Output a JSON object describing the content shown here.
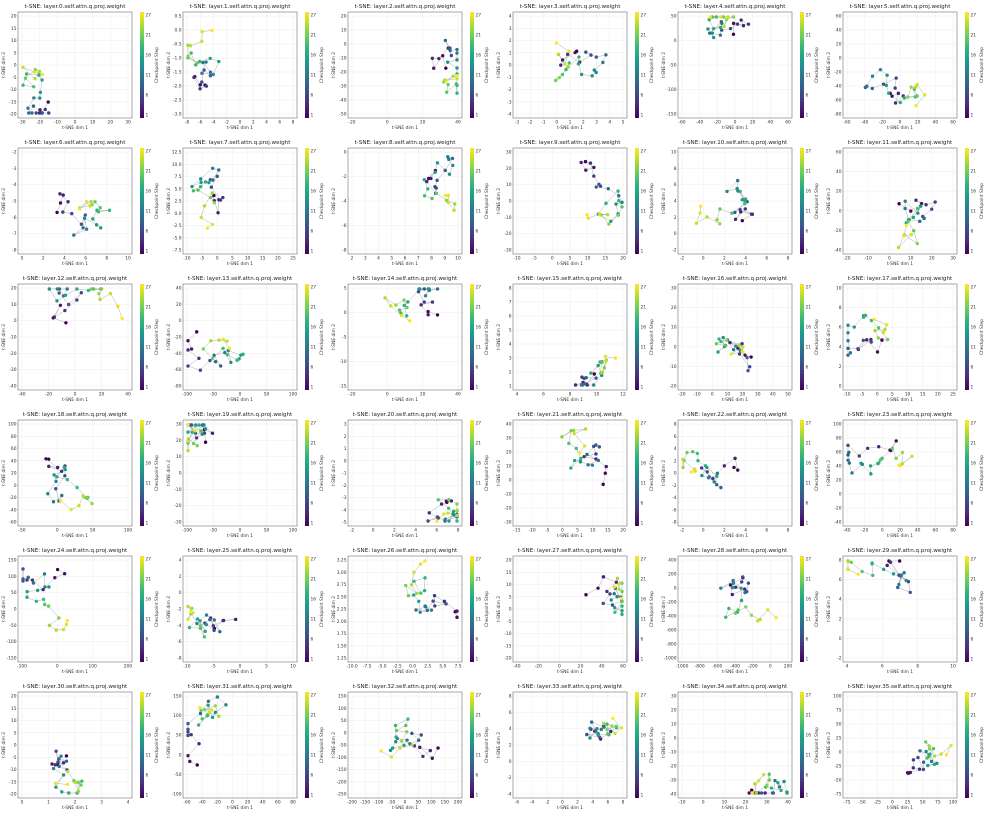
{
  "figure": {
    "xlabel": "t-SNE dim 1",
    "ylabel": "t-SNE dim 2",
    "colorbar_label": "Checkpoint Step",
    "colorbar_ticks": [
      "27",
      "21",
      "16",
      "11",
      "6",
      "1"
    ]
  },
  "chart_data": [
    {
      "title": "t-SNE: layer.0.self.attn.q.proj.weight",
      "type": "scatter",
      "xticks": [
        "-30",
        "-20",
        "-10",
        "0",
        "10",
        "20",
        "30"
      ],
      "yticks": [
        "20",
        "15",
        "10",
        "5",
        "0",
        "-5",
        "-10",
        "-15",
        "-20"
      ]
    },
    {
      "title": "t-SNE: layer.1.self.attn.q.proj.weight",
      "type": "scatter",
      "xticks": [
        "-8",
        "-6",
        "-4",
        "-2",
        "0",
        "2",
        "4",
        "6",
        "8"
      ],
      "yticks": [
        "0.5",
        "0.0",
        "-0.5",
        "-1.0",
        "-1.5",
        "-2.0",
        "-2.5",
        "-3.0"
      ]
    },
    {
      "title": "t-SNE: layer.2.self.attn.q.proj.weight",
      "type": "scatter",
      "xticks": [
        "-20",
        "0",
        "20",
        "40"
      ],
      "yticks": [
        "20",
        "10",
        "0",
        "-10",
        "-20",
        "-30",
        "-40",
        "-50"
      ]
    },
    {
      "title": "t-SNE: layer.3.self.attn.q.proj.weight",
      "type": "scatter",
      "xticks": [
        "-3",
        "-2",
        "-1",
        "0",
        "1",
        "2",
        "3",
        "4",
        "5"
      ],
      "yticks": [
        "4",
        "3",
        "2",
        "1",
        "0",
        "-1",
        "-2",
        "-3",
        "-4"
      ]
    },
    {
      "title": "t-SNE: layer.4.self.attn.q.proj.weight",
      "type": "scatter",
      "xticks": [
        "-60",
        "-40",
        "-20",
        "0",
        "20",
        "40",
        "60"
      ],
      "yticks": [
        "50",
        "0",
        "-50",
        "-100",
        "-150"
      ]
    },
    {
      "title": "t-SNE: layer.5.self.attn.q.proj.weight",
      "type": "scatter",
      "xticks": [
        "-60",
        "-40",
        "-20",
        "0",
        "20",
        "40",
        "60"
      ],
      "yticks": [
        "60",
        "40",
        "20",
        "0",
        "-20",
        "-40",
        "-60",
        "-80"
      ]
    },
    {
      "title": "t-SNE: layer.6.self.attn.q.proj.weight",
      "type": "scatter",
      "xticks": [
        "0",
        "2",
        "4",
        "6",
        "8",
        "10"
      ],
      "yticks": [
        "-2",
        "-3",
        "-4",
        "-5",
        "-6",
        "-7",
        "-8"
      ]
    },
    {
      "title": "t-SNE: layer.7.self.attn.q.proj.weight",
      "type": "scatter",
      "xticks": [
        "-10",
        "-5",
        "0",
        "5",
        "10",
        "15",
        "20",
        "25"
      ],
      "yticks": [
        "12.5",
        "10.0",
        "7.5",
        "5.0",
        "2.5",
        "0.0",
        "-2.5",
        "-5.0",
        "-7.5"
      ]
    },
    {
      "title": "t-SNE: layer.8.self.attn.q.proj.weight",
      "type": "scatter",
      "xticks": [
        "2",
        "3",
        "4",
        "5",
        "6",
        "7",
        "8",
        "9",
        "10"
      ],
      "yticks": [
        "0",
        "-2",
        "-4",
        "-6",
        "-8"
      ]
    },
    {
      "title": "t-SNE: layer.9.self.attn.q.proj.weight",
      "type": "scatter",
      "xticks": [
        "-10",
        "-5",
        "0",
        "5",
        "10",
        "15",
        "20"
      ],
      "yticks": [
        "30",
        "20",
        "10",
        "0",
        "-10",
        "-20",
        "-30"
      ]
    },
    {
      "title": "t-SNE: layer.10.self.attn.q.proj.weight",
      "type": "scatter",
      "xticks": [
        "-2",
        "0",
        "2",
        "4",
        "6",
        "8"
      ],
      "yticks": [
        "10",
        "8",
        "6",
        "4",
        "2",
        "0",
        "-2"
      ]
    },
    {
      "title": "t-SNE: layer.11.self.attn.q.proj.weight",
      "type": "scatter",
      "xticks": [
        "-20",
        "-10",
        "0",
        "10",
        "20",
        "30"
      ],
      "yticks": [
        "60",
        "40",
        "20",
        "0",
        "-20",
        "-40"
      ]
    },
    {
      "title": "t-SNE: layer.12.self.attn.q.proj.weight",
      "type": "scatter",
      "xticks": [
        "-40",
        "-20",
        "0",
        "20",
        "40"
      ],
      "yticks": [
        "20",
        "10",
        "0",
        "-10",
        "-20",
        "-30",
        "-40"
      ]
    },
    {
      "title": "t-SNE: layer.13.self.attn.q.proj.weight",
      "type": "scatter",
      "xticks": [
        "-100",
        "-50",
        "0",
        "50",
        "100"
      ],
      "yticks": [
        "40",
        "20",
        "0",
        "-20",
        "-40",
        "-60",
        "-80"
      ]
    },
    {
      "title": "t-SNE: layer.14.self.attn.q.proj.weight",
      "type": "scatter",
      "xticks": [
        "-20",
        "0",
        "20",
        "40"
      ],
      "yticks": [
        "5",
        "0",
        "-5",
        "-10",
        "-15"
      ]
    },
    {
      "title": "t-SNE: layer.15.self.attn.q.proj.weight",
      "type": "scatter",
      "xticks": [
        "4",
        "6",
        "8",
        "10",
        "12"
      ],
      "yticks": [
        "8",
        "7",
        "6",
        "5",
        "4",
        "3",
        "2",
        "1"
      ]
    },
    {
      "title": "t-SNE: layer.16.self.attn.q.proj.weight",
      "type": "scatter",
      "xticks": [
        "-20",
        "-10",
        "0",
        "10",
        "20",
        "30",
        "40",
        "50"
      ],
      "yticks": [
        "30",
        "20",
        "10",
        "0",
        "-10",
        "-20"
      ]
    },
    {
      "title": "t-SNE: layer.17.self.attn.q.proj.weight",
      "type": "scatter",
      "xticks": [
        "-10",
        "-5",
        "0",
        "5",
        "10",
        "15",
        "20",
        "25"
      ],
      "yticks": [
        "10",
        "8",
        "6",
        "4",
        "2",
        "0"
      ]
    },
    {
      "title": "t-SNE: layer.18.self.attn.q.proj.weight",
      "type": "scatter",
      "xticks": [
        "-50",
        "0",
        "50",
        "100"
      ],
      "yticks": [
        "100",
        "80",
        "60",
        "40",
        "20",
        "0",
        "-20",
        "-40",
        "-60"
      ]
    },
    {
      "title": "t-SNE: layer.19.self.attn.q.proj.weight",
      "type": "scatter",
      "xticks": [
        "-100",
        "-50",
        "0",
        "50",
        "100"
      ],
      "yticks": [
        "30",
        "20",
        "10",
        "0",
        "-10",
        "-20",
        "-30"
      ]
    },
    {
      "title": "t-SNE: layer.20.self.attn.q.proj.weight",
      "type": "scatter",
      "xticks": [
        "-2",
        "0",
        "2",
        "4",
        "6",
        "8"
      ],
      "yticks": [
        "3",
        "2",
        "1",
        "0",
        "-1",
        "-2",
        "-3",
        "-4",
        "-5"
      ]
    },
    {
      "title": "t-SNE: layer.21.self.attn.q.proj.weight",
      "type": "scatter",
      "xticks": [
        "-15",
        "-10",
        "-5",
        "0",
        "5",
        "10",
        "15",
        "20"
      ],
      "yticks": [
        "40",
        "30",
        "20",
        "10",
        "0",
        "-10",
        "-20",
        "-30"
      ]
    },
    {
      "title": "t-SNE: layer.22.self.attn.q.proj.weight",
      "type": "scatter",
      "xticks": [
        "-2",
        "0",
        "2",
        "4",
        "6",
        "8"
      ],
      "yticks": [
        "8",
        "6",
        "4",
        "2",
        "0",
        "-2",
        "-4",
        "-6",
        "-8"
      ]
    },
    {
      "title": "t-SNE: layer.23.self.attn.q.proj.weight",
      "type": "scatter",
      "xticks": [
        "-40",
        "-20",
        "0",
        "20",
        "40",
        "60",
        "80"
      ],
      "yticks": [
        "100",
        "80",
        "60",
        "40",
        "20",
        "0",
        "-20",
        "-40"
      ]
    },
    {
      "title": "t-SNE: layer.24.self.attn.q.proj.weight",
      "type": "scatter",
      "xticks": [
        "-100",
        "0",
        "100",
        "200"
      ],
      "yticks": [
        "150",
        "100",
        "50",
        "0",
        "-50",
        "-100",
        "-150"
      ]
    },
    {
      "title": "t-SNE: layer.25.self.attn.q.proj.weight",
      "type": "scatter",
      "xticks": [
        "-10",
        "-5",
        "0",
        "5",
        "10"
      ],
      "yticks": [
        "4",
        "2",
        "0",
        "-2",
        "-4",
        "-6",
        "-8"
      ]
    },
    {
      "title": "t-SNE: layer.26.self.attn.q.proj.weight",
      "type": "scatter",
      "xticks": [
        "-10.0",
        "-7.5",
        "-5.0",
        "-2.5",
        "0.0",
        "2.5",
        "5.0",
        "7.5"
      ],
      "yticks": [
        "3.25",
        "3.00",
        "2.75",
        "2.50",
        "2.25",
        "2.00",
        "1.75",
        "1.50",
        "1.25"
      ]
    },
    {
      "title": "t-SNE: layer.27.self.attn.q.proj.weight",
      "type": "scatter",
      "xticks": [
        "-40",
        "-20",
        "0",
        "20",
        "40",
        "60"
      ],
      "yticks": [
        "20",
        "15",
        "10",
        "5",
        "0",
        "-5",
        "-10",
        "-15",
        "-20"
      ]
    },
    {
      "title": "t-SNE: layer.28.self.attn.q.proj.weight",
      "type": "scatter",
      "xticks": [
        "-1000",
        "-800",
        "-600",
        "-400",
        "-200",
        "0",
        "200"
      ],
      "yticks": [
        "400",
        "200",
        "0",
        "-200",
        "-400",
        "-600",
        "-800",
        "-1000"
      ]
    },
    {
      "title": "t-SNE: layer.29.self.attn.q.proj.weight",
      "type": "scatter",
      "xticks": [
        "4",
        "6",
        "8",
        "10"
      ],
      "yticks": [
        "8",
        "6",
        "4",
        "2",
        "0",
        "-2"
      ]
    },
    {
      "title": "t-SNE: layer.30.self.attn.q.proj.weight",
      "type": "scatter",
      "xticks": [
        "0",
        "1",
        "2",
        "3",
        "4"
      ],
      "yticks": [
        "20",
        "15",
        "10",
        "5",
        "0",
        "-5",
        "-10",
        "-15",
        "-20"
      ]
    },
    {
      "title": "t-SNE: layer.31.self.attn.q.proj.weight",
      "type": "scatter",
      "xticks": [
        "-60",
        "-40",
        "-20",
        "0",
        "20",
        "40",
        "60",
        "80"
      ],
      "yticks": [
        "150",
        "100",
        "50",
        "0",
        "-50",
        "-100"
      ]
    },
    {
      "title": "t-SNE: layer.32.self.attn.q.proj.weight",
      "type": "scatter",
      "xticks": [
        "-200",
        "-150",
        "-100",
        "-50",
        "0",
        "50",
        "100",
        "150",
        "200"
      ],
      "yticks": [
        "150",
        "100",
        "50",
        "0",
        "-50",
        "-100",
        "-150",
        "-200",
        "-250"
      ]
    },
    {
      "title": "t-SNE: layer.33.self.attn.q.proj.weight",
      "type": "scatter",
      "xticks": [
        "-6",
        "-4",
        "-2",
        "0",
        "2",
        "4",
        "6",
        "8"
      ],
      "yticks": [
        "8",
        "6",
        "4",
        "2",
        "0",
        "-2",
        "-4"
      ]
    },
    {
      "title": "t-SNE: layer.34.self.attn.q.proj.weight",
      "type": "scatter",
      "xticks": [
        "-10",
        "0",
        "10",
        "20",
        "30",
        "40"
      ],
      "yticks": [
        "30",
        "20",
        "10",
        "0",
        "-10",
        "-20",
        "-30",
        "-40"
      ]
    },
    {
      "title": "t-SNE: layer.35.self.attn.q.proj.weight",
      "type": "scatter",
      "xticks": [
        "-75",
        "-50",
        "-25",
        "0",
        "25",
        "50",
        "75",
        "100"
      ],
      "yticks": [
        "100",
        "75",
        "50",
        "25",
        "0",
        "-25",
        "-50",
        "-75"
      ]
    }
  ],
  "colors": {
    "viridis": [
      "#440154",
      "#482878",
      "#3e4989",
      "#31688e",
      "#26828e",
      "#1f9e89",
      "#35b779",
      "#6ece58",
      "#b5de2b",
      "#fde725"
    ],
    "line": "#9a9a9a",
    "grid": "#e8e8e8"
  }
}
